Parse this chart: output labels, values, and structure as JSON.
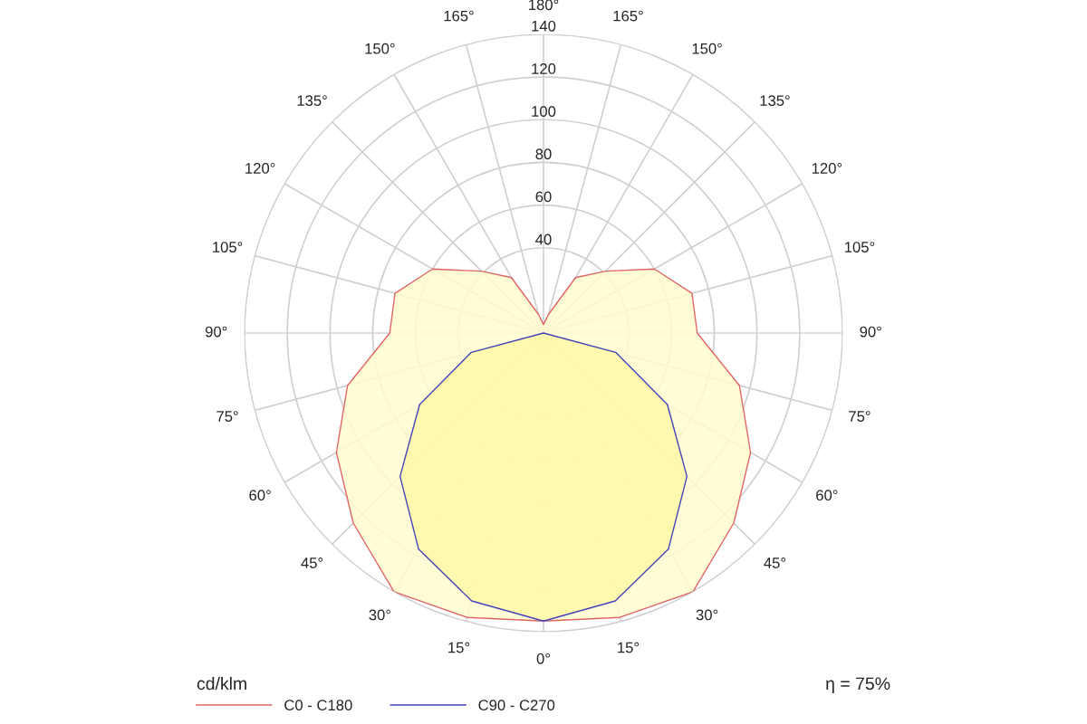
{
  "chart_data": {
    "type": "radar",
    "categories": [
      "180°",
      "165°",
      "150°",
      "135°",
      "120°",
      "105°",
      "90°",
      "75°",
      "60°",
      "45°",
      "30°",
      "15°",
      "0°",
      "15°",
      "30°",
      "45°",
      "60°",
      "75°",
      "90°",
      "105°",
      "120°",
      "135°",
      "150°",
      "165°"
    ],
    "series": [
      {
        "name": "C0 - C180",
        "color": "#e06666",
        "values": [
          4,
          9,
          30,
          41,
          60,
          72,
          72,
          95,
          112,
          126,
          140,
          138,
          135,
          138,
          140,
          126,
          112,
          95,
          72,
          72,
          60,
          41,
          30,
          9
        ]
      },
      {
        "name": "C90 - C270",
        "color": "#4444bb",
        "values": [
          0,
          0,
          0,
          0,
          0,
          0,
          0,
          35,
          67,
          95,
          117,
          130,
          135,
          130,
          117,
          95,
          67,
          35,
          0,
          0,
          0,
          0,
          0,
          0
        ]
      }
    ],
    "ylim": [
      0,
      140
    ],
    "yticks": [
      40,
      60,
      80,
      100,
      120,
      140
    ],
    "ylabel": "cd/klm",
    "annotations": [
      "η = 75%"
    ],
    "grid": true,
    "legend": "bottom"
  }
}
